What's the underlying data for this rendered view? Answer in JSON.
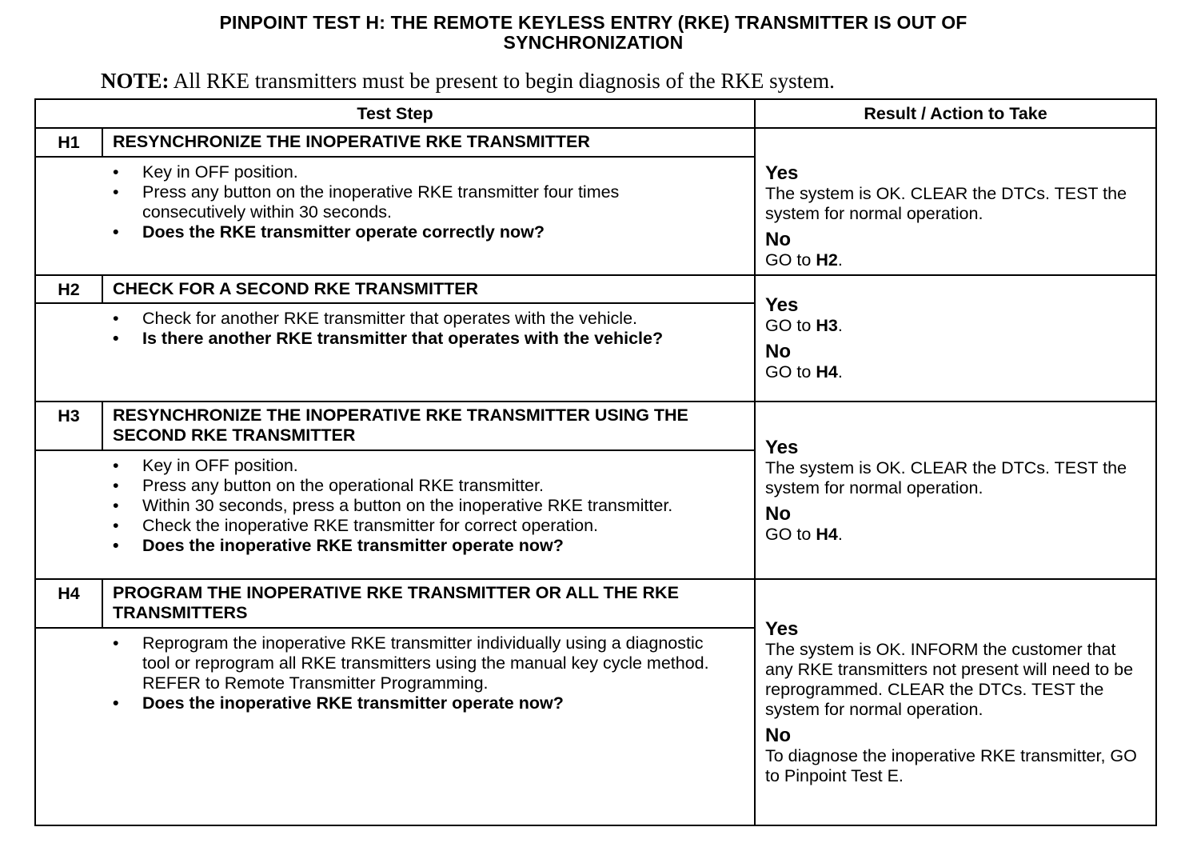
{
  "title_line1": "PINPOINT TEST  H: THE REMOTE KEYLESS ENTRY (RKE) TRANSMITTER IS OUT OF",
  "title_line2": "SYNCHRONIZATION",
  "note_label": "NOTE:",
  "note_text": " All RKE transmitters must be present to begin diagnosis of the RKE system.",
  "columns": {
    "test_step": "Test Step",
    "result": "Result / Action to Take"
  },
  "steps": [
    {
      "id": "H1",
      "header": "RESYNCHRONIZE THE INOPERATIVE RKE TRANSMITTER",
      "bullets": [
        "Key in OFF position.",
        "Press any button on the inoperative RKE transmitter four times consecutively within 30 seconds."
      ],
      "question": "Does the RKE transmitter operate correctly now?",
      "yes_label": "Yes",
      "yes_text": "The system is OK. CLEAR the DTCs. TEST the system for normal operation.",
      "no_label": "No",
      "no_text": "GO to ",
      "no_target": "H2",
      "no_end": "."
    },
    {
      "id": "H2",
      "header": "CHECK FOR A SECOND RKE TRANSMITTER",
      "bullets": [
        "Check for another RKE transmitter that operates with the vehicle."
      ],
      "question": "Is there another RKE transmitter that operates with the vehicle?",
      "yes_label": "Yes",
      "yes_text": "GO to ",
      "yes_target": "H3",
      "yes_end": ".",
      "no_label": "No",
      "no_text": "GO to ",
      "no_target": "H4",
      "no_end": "."
    },
    {
      "id": "H3",
      "header": "RESYNCHRONIZE THE INOPERATIVE RKE TRANSMITTER USING THE SECOND RKE TRANSMITTER",
      "bullets": [
        "Key in OFF position.",
        "Press any button on the operational RKE transmitter.",
        "Within 30 seconds, press a button on the inoperative RKE transmitter.",
        "Check the inoperative RKE transmitter for correct operation."
      ],
      "question": "Does the inoperative RKE transmitter operate now?",
      "yes_label": "Yes",
      "yes_text": "The system is OK. CLEAR the DTCs. TEST the system for normal operation.",
      "no_label": "No",
      "no_text": "GO to ",
      "no_target": "H4",
      "no_end": "."
    },
    {
      "id": "H4",
      "header": "PROGRAM THE INOPERATIVE RKE TRANSMITTER OR ALL THE RKE TRANSMITTERS",
      "bullets": [
        "Reprogram the inoperative RKE transmitter individually using a diagnostic tool or reprogram all RKE transmitters using the manual key cycle method. REFER to Remote Transmitter Programming."
      ],
      "question": "Does the inoperative RKE transmitter operate now?",
      "yes_label": "Yes",
      "yes_text": "The system is OK. INFORM the customer that any RKE transmitters not present will need to be reprogrammed. CLEAR the DTCs. TEST the system for normal operation.",
      "no_label": "No",
      "no_text": "To diagnose the inoperative RKE transmitter, GO to Pinpoint Test E."
    }
  ]
}
